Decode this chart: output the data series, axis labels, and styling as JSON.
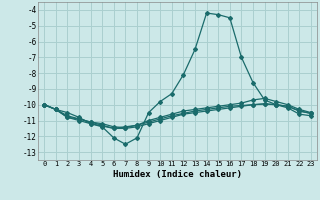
{
  "xlabel": "Humidex (Indice chaleur)",
  "ylabel": "",
  "xlim": [
    -0.5,
    23.5
  ],
  "ylim": [
    -13.5,
    -3.5
  ],
  "yticks": [
    -4,
    -5,
    -6,
    -7,
    -8,
    -9,
    -10,
    -11,
    -12,
    -13
  ],
  "xticks": [
    0,
    1,
    2,
    3,
    4,
    5,
    6,
    7,
    8,
    9,
    10,
    11,
    12,
    13,
    14,
    15,
    16,
    17,
    18,
    19,
    20,
    21,
    22,
    23
  ],
  "bg_color": "#cce8e8",
  "grid_color": "#aacfcf",
  "line_color": "#1a6b6b",
  "lines": [
    {
      "x": [
        0,
        1,
        2,
        3,
        4,
        5,
        6,
        7,
        8,
        9,
        10,
        11,
        12,
        13,
        14,
        15,
        16,
        17,
        18,
        19,
        20,
        21,
        22,
        23
      ],
      "y": [
        -10.0,
        -10.3,
        -10.5,
        -10.8,
        -11.2,
        -11.4,
        -12.1,
        -12.5,
        -12.1,
        -10.5,
        -9.8,
        -9.3,
        -8.1,
        -6.5,
        -4.2,
        -4.3,
        -4.5,
        -7.0,
        -8.6,
        -9.7,
        -10.0,
        -10.2,
        -10.6,
        -10.7
      ]
    },
    {
      "x": [
        0,
        1,
        2,
        3,
        4,
        5,
        6,
        7,
        8,
        9,
        10,
        11,
        12,
        13,
        14,
        15,
        16,
        17,
        18,
        19,
        20,
        21,
        22,
        23
      ],
      "y": [
        -10.0,
        -10.3,
        -10.8,
        -10.9,
        -11.1,
        -11.3,
        -11.5,
        -11.4,
        -11.3,
        -11.0,
        -10.8,
        -10.6,
        -10.4,
        -10.3,
        -10.2,
        -10.1,
        -10.0,
        -9.9,
        -9.7,
        -9.6,
        -9.8,
        -10.0,
        -10.3,
        -10.5
      ]
    },
    {
      "x": [
        0,
        1,
        2,
        3,
        4,
        5,
        6,
        7,
        8,
        9,
        10,
        11,
        12,
        13,
        14,
        15,
        16,
        17,
        18,
        19,
        20,
        21,
        22,
        23
      ],
      "y": [
        -10.0,
        -10.3,
        -10.7,
        -10.9,
        -11.1,
        -11.2,
        -11.4,
        -11.45,
        -11.3,
        -11.1,
        -10.9,
        -10.7,
        -10.55,
        -10.4,
        -10.3,
        -10.2,
        -10.1,
        -10.05,
        -10.0,
        -9.95,
        -10.0,
        -10.1,
        -10.4,
        -10.55
      ]
    },
    {
      "x": [
        0,
        1,
        2,
        3,
        4,
        5,
        6,
        7,
        8,
        9,
        10,
        11,
        12,
        13,
        14,
        15,
        16,
        17,
        18,
        19,
        20,
        21,
        22,
        23
      ],
      "y": [
        -10.0,
        -10.3,
        -10.8,
        -11.0,
        -11.2,
        -11.35,
        -11.5,
        -11.5,
        -11.4,
        -11.2,
        -11.0,
        -10.8,
        -10.6,
        -10.5,
        -10.4,
        -10.3,
        -10.2,
        -10.1,
        -10.0,
        -9.95,
        -10.0,
        -10.1,
        -10.4,
        -10.55
      ]
    }
  ]
}
